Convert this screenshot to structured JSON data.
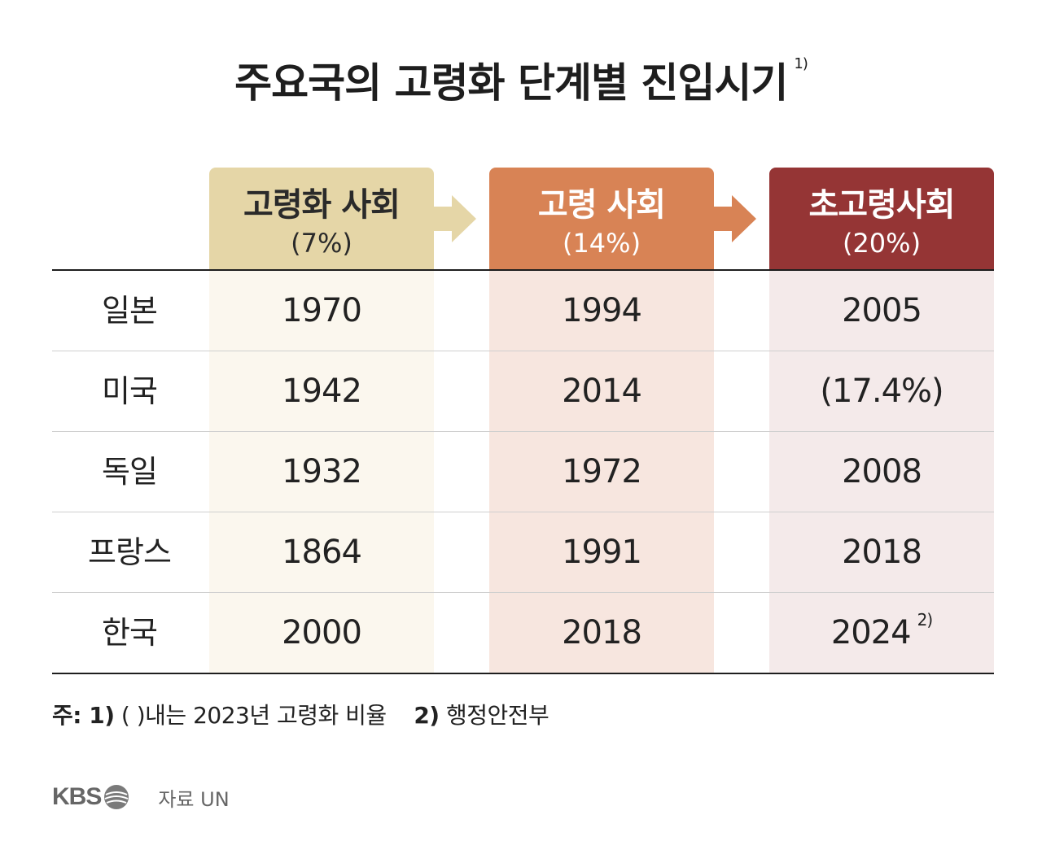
{
  "title": "주요국의 고령화 단계별 진입시기",
  "title_note": "1)",
  "columns": [
    {
      "name": "고령화 사회",
      "pct": "(7%)",
      "color": "#e5d6a7"
    },
    {
      "name": "고령 사회",
      "pct": "(14%)",
      "color": "#d88355"
    },
    {
      "name": "초고령사회",
      "pct": "(20%)",
      "color": "#953535"
    }
  ],
  "rows": [
    {
      "country": "일본",
      "v1": "1970",
      "v2": "1994",
      "v3": "2005",
      "v3_note": ""
    },
    {
      "country": "미국",
      "v1": "1942",
      "v2": "2014",
      "v3": "(17.4%)",
      "v3_note": ""
    },
    {
      "country": "독일",
      "v1": "1932",
      "v2": "1972",
      "v3": "2008",
      "v3_note": ""
    },
    {
      "country": "프랑스",
      "v1": "1864",
      "v2": "1991",
      "v3": "2018",
      "v3_note": ""
    },
    {
      "country": "한국",
      "v1": "2000",
      "v2": "2018",
      "v3": "2024",
      "v3_note": "2)"
    }
  ],
  "notes": {
    "prefix": "주: 1)",
    "note1": "(   )내는 2023년 고령화 비율",
    "note2_label": "2)",
    "note2": "행정안전부"
  },
  "footer": {
    "logo": "KBS",
    "source": "자료 UN"
  },
  "icons": {
    "logo_icon": "kbs-globe-icon",
    "arrow": "arrow-right-icon"
  }
}
